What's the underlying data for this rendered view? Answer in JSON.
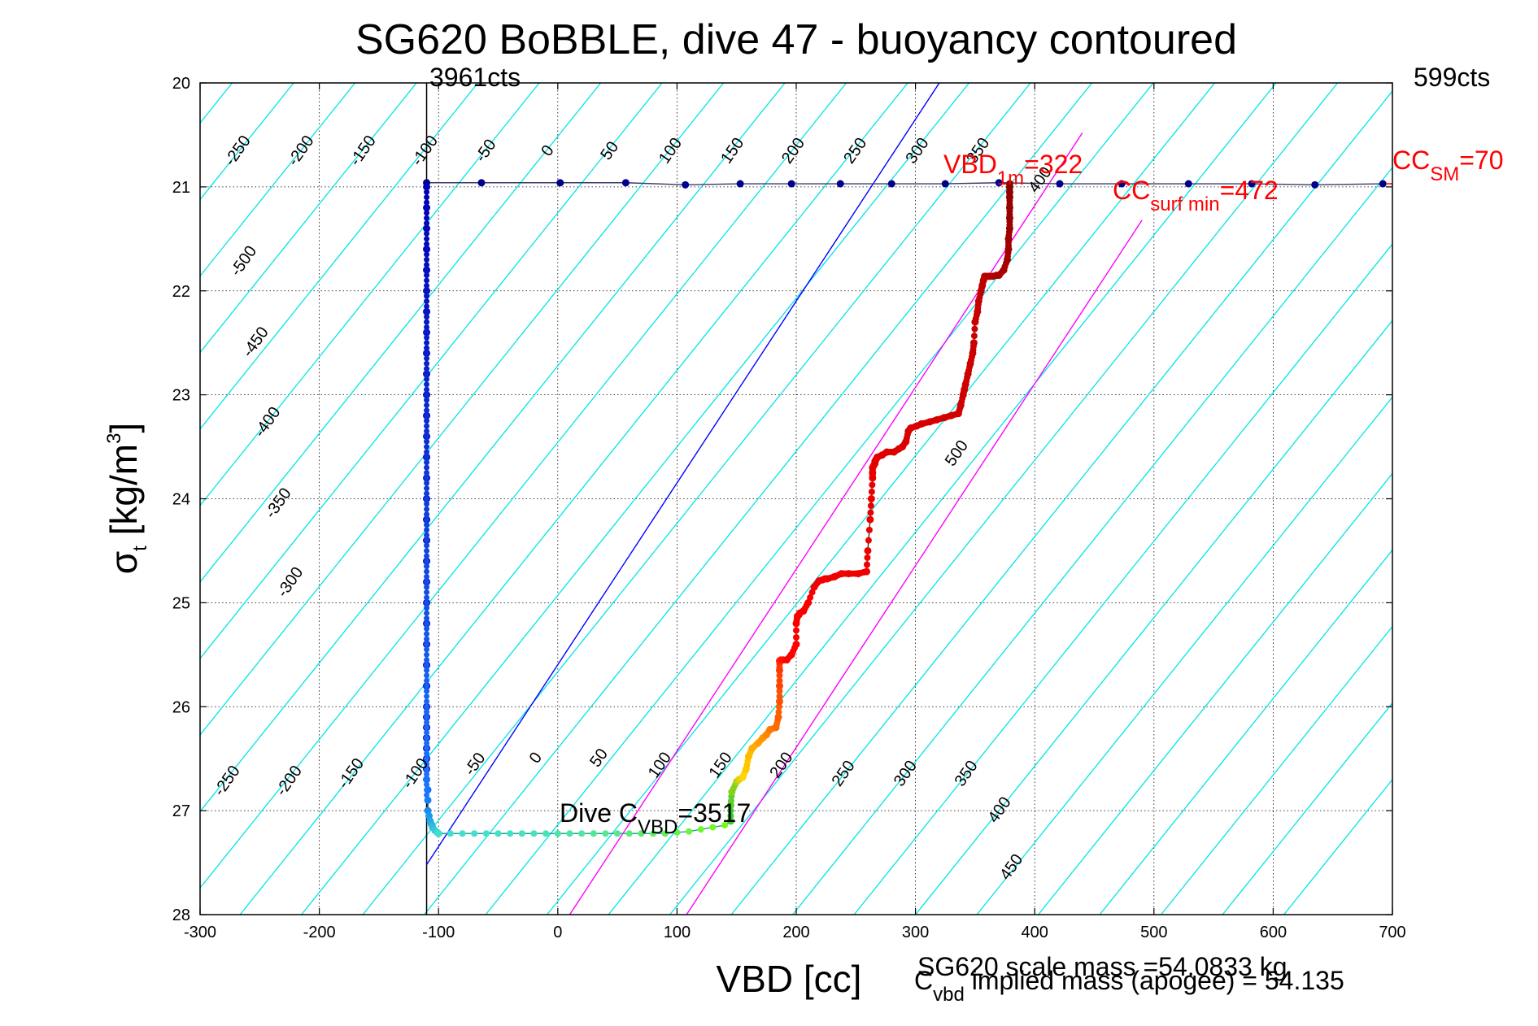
{
  "chart_data": {
    "type": "scatter",
    "title": "SG620 BoBBLE, dive 47 - buoyancy contoured",
    "xlabel": "VBD [cc]",
    "ylabel_main": "σ",
    "ylabel_sub": "t",
    "ylabel_unit_pre": " [kg/m",
    "ylabel_unit_sup": "3",
    "ylabel_unit_post": "]",
    "xlim": [
      -300,
      700
    ],
    "ylim": [
      20,
      28
    ],
    "y_reversed": true,
    "grid": true,
    "x_ticks": [
      -300,
      -200,
      -100,
      0,
      100,
      200,
      300,
      400,
      500,
      600,
      700
    ],
    "y_ticks": [
      20,
      21,
      22,
      23,
      24,
      25,
      26,
      27,
      28
    ],
    "counts_left": "3961cts",
    "counts_right": "599cts",
    "contour_levels": [
      -500,
      -450,
      -400,
      -350,
      -300,
      -250,
      -200,
      -150,
      -100,
      -50,
      0,
      50,
      100,
      150,
      200,
      250,
      300,
      350,
      400,
      450,
      500
    ],
    "contour_labels": [
      {
        "text": "-250",
        "x": -265,
        "y": 20.68
      },
      {
        "text": "-200",
        "x": -212,
        "y": 20.68
      },
      {
        "text": "-150",
        "x": -160,
        "y": 20.68
      },
      {
        "text": "-100",
        "x": -108,
        "y": 20.68
      },
      {
        "text": "-50",
        "x": -57,
        "y": 20.68
      },
      {
        "text": "0",
        "x": -5,
        "y": 20.68
      },
      {
        "text": "50",
        "x": 47,
        "y": 20.68
      },
      {
        "text": "100",
        "x": 98,
        "y": 20.68
      },
      {
        "text": "150",
        "x": 150,
        "y": 20.68
      },
      {
        "text": "200",
        "x": 201,
        "y": 20.68
      },
      {
        "text": "250",
        "x": 253,
        "y": 20.68
      },
      {
        "text": "300",
        "x": 305,
        "y": 20.68
      },
      {
        "text": "350",
        "x": 356,
        "y": 20.68
      },
      {
        "text": "400",
        "x": 408,
        "y": 20.96
      },
      {
        "text": "-500",
        "x": -260,
        "y": 21.74
      },
      {
        "text": "-450",
        "x": -250,
        "y": 22.52
      },
      {
        "text": "-400",
        "x": -240,
        "y": 23.29
      },
      {
        "text": "-350",
        "x": -231,
        "y": 24.07
      },
      {
        "text": "-300",
        "x": -221,
        "y": 24.83
      },
      {
        "text": "500",
        "x": 338,
        "y": 23.59
      },
      {
        "text": "-250",
        "x": -274,
        "y": 26.74
      },
      {
        "text": "-200",
        "x": -222,
        "y": 26.74
      },
      {
        "text": "-150",
        "x": -170,
        "y": 26.67
      },
      {
        "text": "-100",
        "x": -116,
        "y": 26.67
      },
      {
        "text": "-50",
        "x": -66,
        "y": 26.58
      },
      {
        "text": "0",
        "x": -15,
        "y": 26.52
      },
      {
        "text": "50",
        "x": 38,
        "y": 26.52
      },
      {
        "text": "100",
        "x": 89,
        "y": 26.59
      },
      {
        "text": "150",
        "x": 140,
        "y": 26.59
      },
      {
        "text": "200",
        "x": 191,
        "y": 26.59
      },
      {
        "text": "250",
        "x": 243,
        "y": 26.67
      },
      {
        "text": "300",
        "x": 295,
        "y": 26.67
      },
      {
        "text": "350",
        "x": 346,
        "y": 26.67
      },
      {
        "text": "400",
        "x": 374,
        "y": 27.02
      },
      {
        "text": "450",
        "x": 384,
        "y": 27.57
      }
    ],
    "vertical_lines": [
      {
        "name": "3961cts",
        "x": -110,
        "color": "#000000"
      }
    ],
    "reference_lines": [
      {
        "name": "blue",
        "color": "#0000ff",
        "x": [
          -110,
          320
        ],
        "y": [
          27.52,
          20
        ]
      },
      {
        "name": "magenta-1",
        "color": "#ff00ff",
        "x": [
          10,
          440
        ],
        "y": [
          28,
          20.48
        ]
      },
      {
        "name": "magenta-2",
        "color": "#ff00ff",
        "x": [
          108,
          490
        ],
        "y": [
          28,
          21.32
        ]
      }
    ],
    "surface_track": {
      "color": "#00008b",
      "x": [
        -110,
        -64,
        2,
        57,
        107,
        153,
        196,
        237,
        280,
        325,
        370,
        421,
        473,
        529,
        582,
        635,
        692
      ],
      "y": [
        20.96,
        20.96,
        20.96,
        20.96,
        20.98,
        20.97,
        20.97,
        20.97,
        20.97,
        20.97,
        20.96,
        20.97,
        20.97,
        20.97,
        20.97,
        20.98,
        20.97
      ]
    },
    "descent_points": {
      "x": [
        -110,
        -110,
        -110,
        -110,
        -110,
        -110,
        -110,
        -110,
        -110,
        -110,
        -110,
        -110,
        -110,
        -110,
        -110,
        -110,
        -110,
        -110,
        -110,
        -110,
        -110,
        -110,
        -110,
        -110,
        -110,
        -110,
        -110,
        -110,
        -110,
        -110,
        -110,
        -110,
        -110,
        -109,
        -109,
        -109,
        -108,
        -107,
        -106,
        -105,
        -103,
        -101,
        -100
      ],
      "y": [
        21.0,
        21.2,
        21.4,
        21.6,
        21.8,
        22.0,
        22.2,
        22.4,
        22.6,
        22.8,
        23.0,
        23.2,
        23.4,
        23.6,
        23.8,
        24.0,
        24.2,
        24.4,
        24.6,
        24.8,
        25.0,
        25.2,
        25.4,
        25.6,
        25.8,
        26.0,
        26.1,
        26.2,
        26.3,
        26.4,
        26.5,
        26.6,
        26.7,
        26.8,
        26.9,
        27.0,
        27.05,
        27.1,
        27.13,
        27.16,
        27.19,
        27.21,
        27.22
      ]
    },
    "bottom_track": {
      "x": [
        -100,
        -90,
        -80,
        -70,
        -60,
        -50,
        -40,
        -30,
        -20,
        -10,
        0,
        10,
        20,
        30,
        40,
        50,
        60,
        70,
        80,
        90,
        100,
        110,
        120,
        130,
        140,
        145
      ],
      "y": [
        27.22,
        27.22,
        27.22,
        27.22,
        27.22,
        27.22,
        27.22,
        27.22,
        27.22,
        27.22,
        27.22,
        27.22,
        27.22,
        27.22,
        27.22,
        27.22,
        27.22,
        27.22,
        27.22,
        27.22,
        27.21,
        27.2,
        27.18,
        27.16,
        27.14,
        27.1
      ]
    },
    "climb_track": {
      "x": [
        145,
        145,
        146,
        150,
        152,
        155,
        158,
        160,
        163,
        168,
        172,
        175,
        178,
        183,
        185,
        186,
        186,
        186,
        186,
        187,
        189,
        192,
        196,
        200,
        200,
        201,
        202,
        203,
        206,
        210,
        215,
        219,
        222,
        224,
        226,
        232,
        238,
        244,
        252,
        259,
        260,
        262,
        263,
        264,
        264,
        264,
        265,
        266,
        266,
        267,
        268,
        272,
        276,
        282,
        286,
        289,
        292,
        294,
        296,
        301,
        305,
        312,
        318,
        324,
        330,
        336,
        338,
        340,
        341,
        342,
        344,
        346,
        348,
        349,
        350,
        352,
        353,
        355,
        356,
        357,
        358,
        360,
        362,
        365,
        368,
        370,
        374,
        377,
        378,
        378,
        379,
        379,
        379,
        379,
        379,
        379,
        379
      ],
      "y": [
        27.1,
        26.95,
        26.82,
        26.72,
        26.7,
        26.68,
        26.6,
        26.48,
        26.4,
        26.35,
        26.3,
        26.27,
        26.22,
        26.2,
        26.1,
        25.95,
        25.8,
        25.65,
        25.56,
        25.55,
        25.55,
        25.55,
        25.5,
        25.4,
        25.2,
        25.13,
        25.12,
        25.1,
        25.08,
        25.0,
        24.85,
        24.79,
        24.78,
        24.77,
        24.77,
        24.75,
        24.72,
        24.72,
        24.72,
        24.7,
        24.5,
        24.2,
        24.0,
        23.8,
        23.75,
        23.7,
        23.68,
        23.66,
        23.64,
        23.62,
        23.6,
        23.58,
        23.55,
        23.55,
        23.52,
        23.5,
        23.45,
        23.35,
        23.32,
        23.3,
        23.28,
        23.26,
        23.24,
        23.22,
        23.2,
        23.18,
        23.1,
        23.0,
        22.95,
        22.9,
        22.8,
        22.7,
        22.6,
        22.5,
        22.3,
        22.2,
        22.1,
        22.0,
        21.95,
        21.9,
        21.86,
        21.86,
        21.86,
        21.86,
        21.85,
        21.85,
        21.8,
        21.7,
        21.6,
        21.5,
        21.4,
        21.3,
        21.2,
        21.1,
        21.05,
        21.0,
        20.97
      ]
    },
    "annotations": {
      "vbd_1m": {
        "pre": "VBD",
        "sub": "1m",
        "post": "=322",
        "color": "#ff0000"
      },
      "cc_surf_min": {
        "pre": "CC",
        "sub": "surf min",
        "post": "=472",
        "color": "#ff0000"
      },
      "cc_sm": {
        "pre": "CC",
        "sub": "SM",
        "post": "=70",
        "color": "#ff0000"
      },
      "dive_cvbd": {
        "pre": "Dive C",
        "sub": "VBD",
        "post": "=3517",
        "color": "#000000"
      },
      "scale_mass": "SG620 scale mass =54.0833 kg",
      "implied_mass": {
        "pre": "C",
        "sub": "vbd",
        "post": " implied mass (apogee) = 54.135"
      }
    },
    "colors": {
      "contour": "#00e5e5",
      "grid": "#000000",
      "surface": "#00008b",
      "descent_start": "#0000c8",
      "descent_end": "#0064ff",
      "bottom": "#40e0d0",
      "climb_start": "#32cd32",
      "climb_mid": "#ffd700",
      "climb_orange": "#ff7f00",
      "climb_red": "#ff0000",
      "climb_end": "#8b0000"
    }
  }
}
